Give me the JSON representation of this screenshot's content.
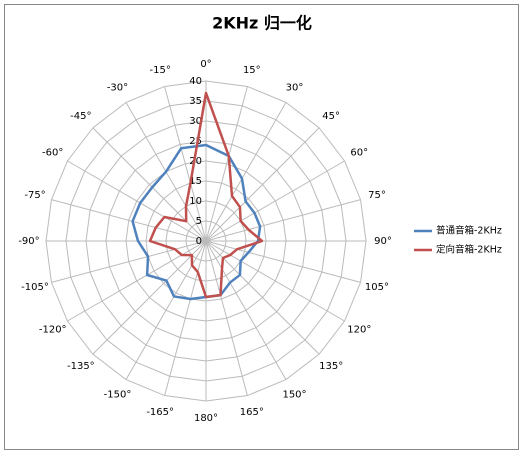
{
  "chart_data": {
    "type": "radar",
    "title": "2KHz 归一化",
    "categories": [
      "0°",
      "15°",
      "30°",
      "45°",
      "60°",
      "75°",
      "90°",
      "105°",
      "120°",
      "135°",
      "150°",
      "165°",
      "180°",
      "-165°",
      "-150°",
      "-135°",
      "-120°",
      "-105°",
      "-90°",
      "-75°",
      "-60°",
      "-45°",
      "-30°",
      "-15°"
    ],
    "series": [
      {
        "name": "普通音箱-2KHz",
        "color": "#4f81bd",
        "values": [
          24,
          22,
          18,
          14,
          14,
          14,
          13,
          11,
          10,
          12,
          12,
          14,
          14,
          15,
          16,
          14,
          17,
          15,
          17,
          19,
          19,
          19,
          20,
          24
        ]
      },
      {
        "name": "定向音箱-2KHz",
        "color": "#c0504d",
        "values": [
          37,
          22,
          13,
          12,
          10,
          11,
          14,
          8,
          7,
          6,
          8,
          14,
          14,
          8,
          7,
          5,
          7,
          8,
          14,
          13,
          12,
          7,
          10,
          15
        ]
      }
    ],
    "ylim": [
      0,
      40
    ],
    "yticks": [
      0,
      5,
      10,
      15,
      20,
      25,
      30,
      35,
      40
    ],
    "grid": true,
    "legend": "right"
  }
}
